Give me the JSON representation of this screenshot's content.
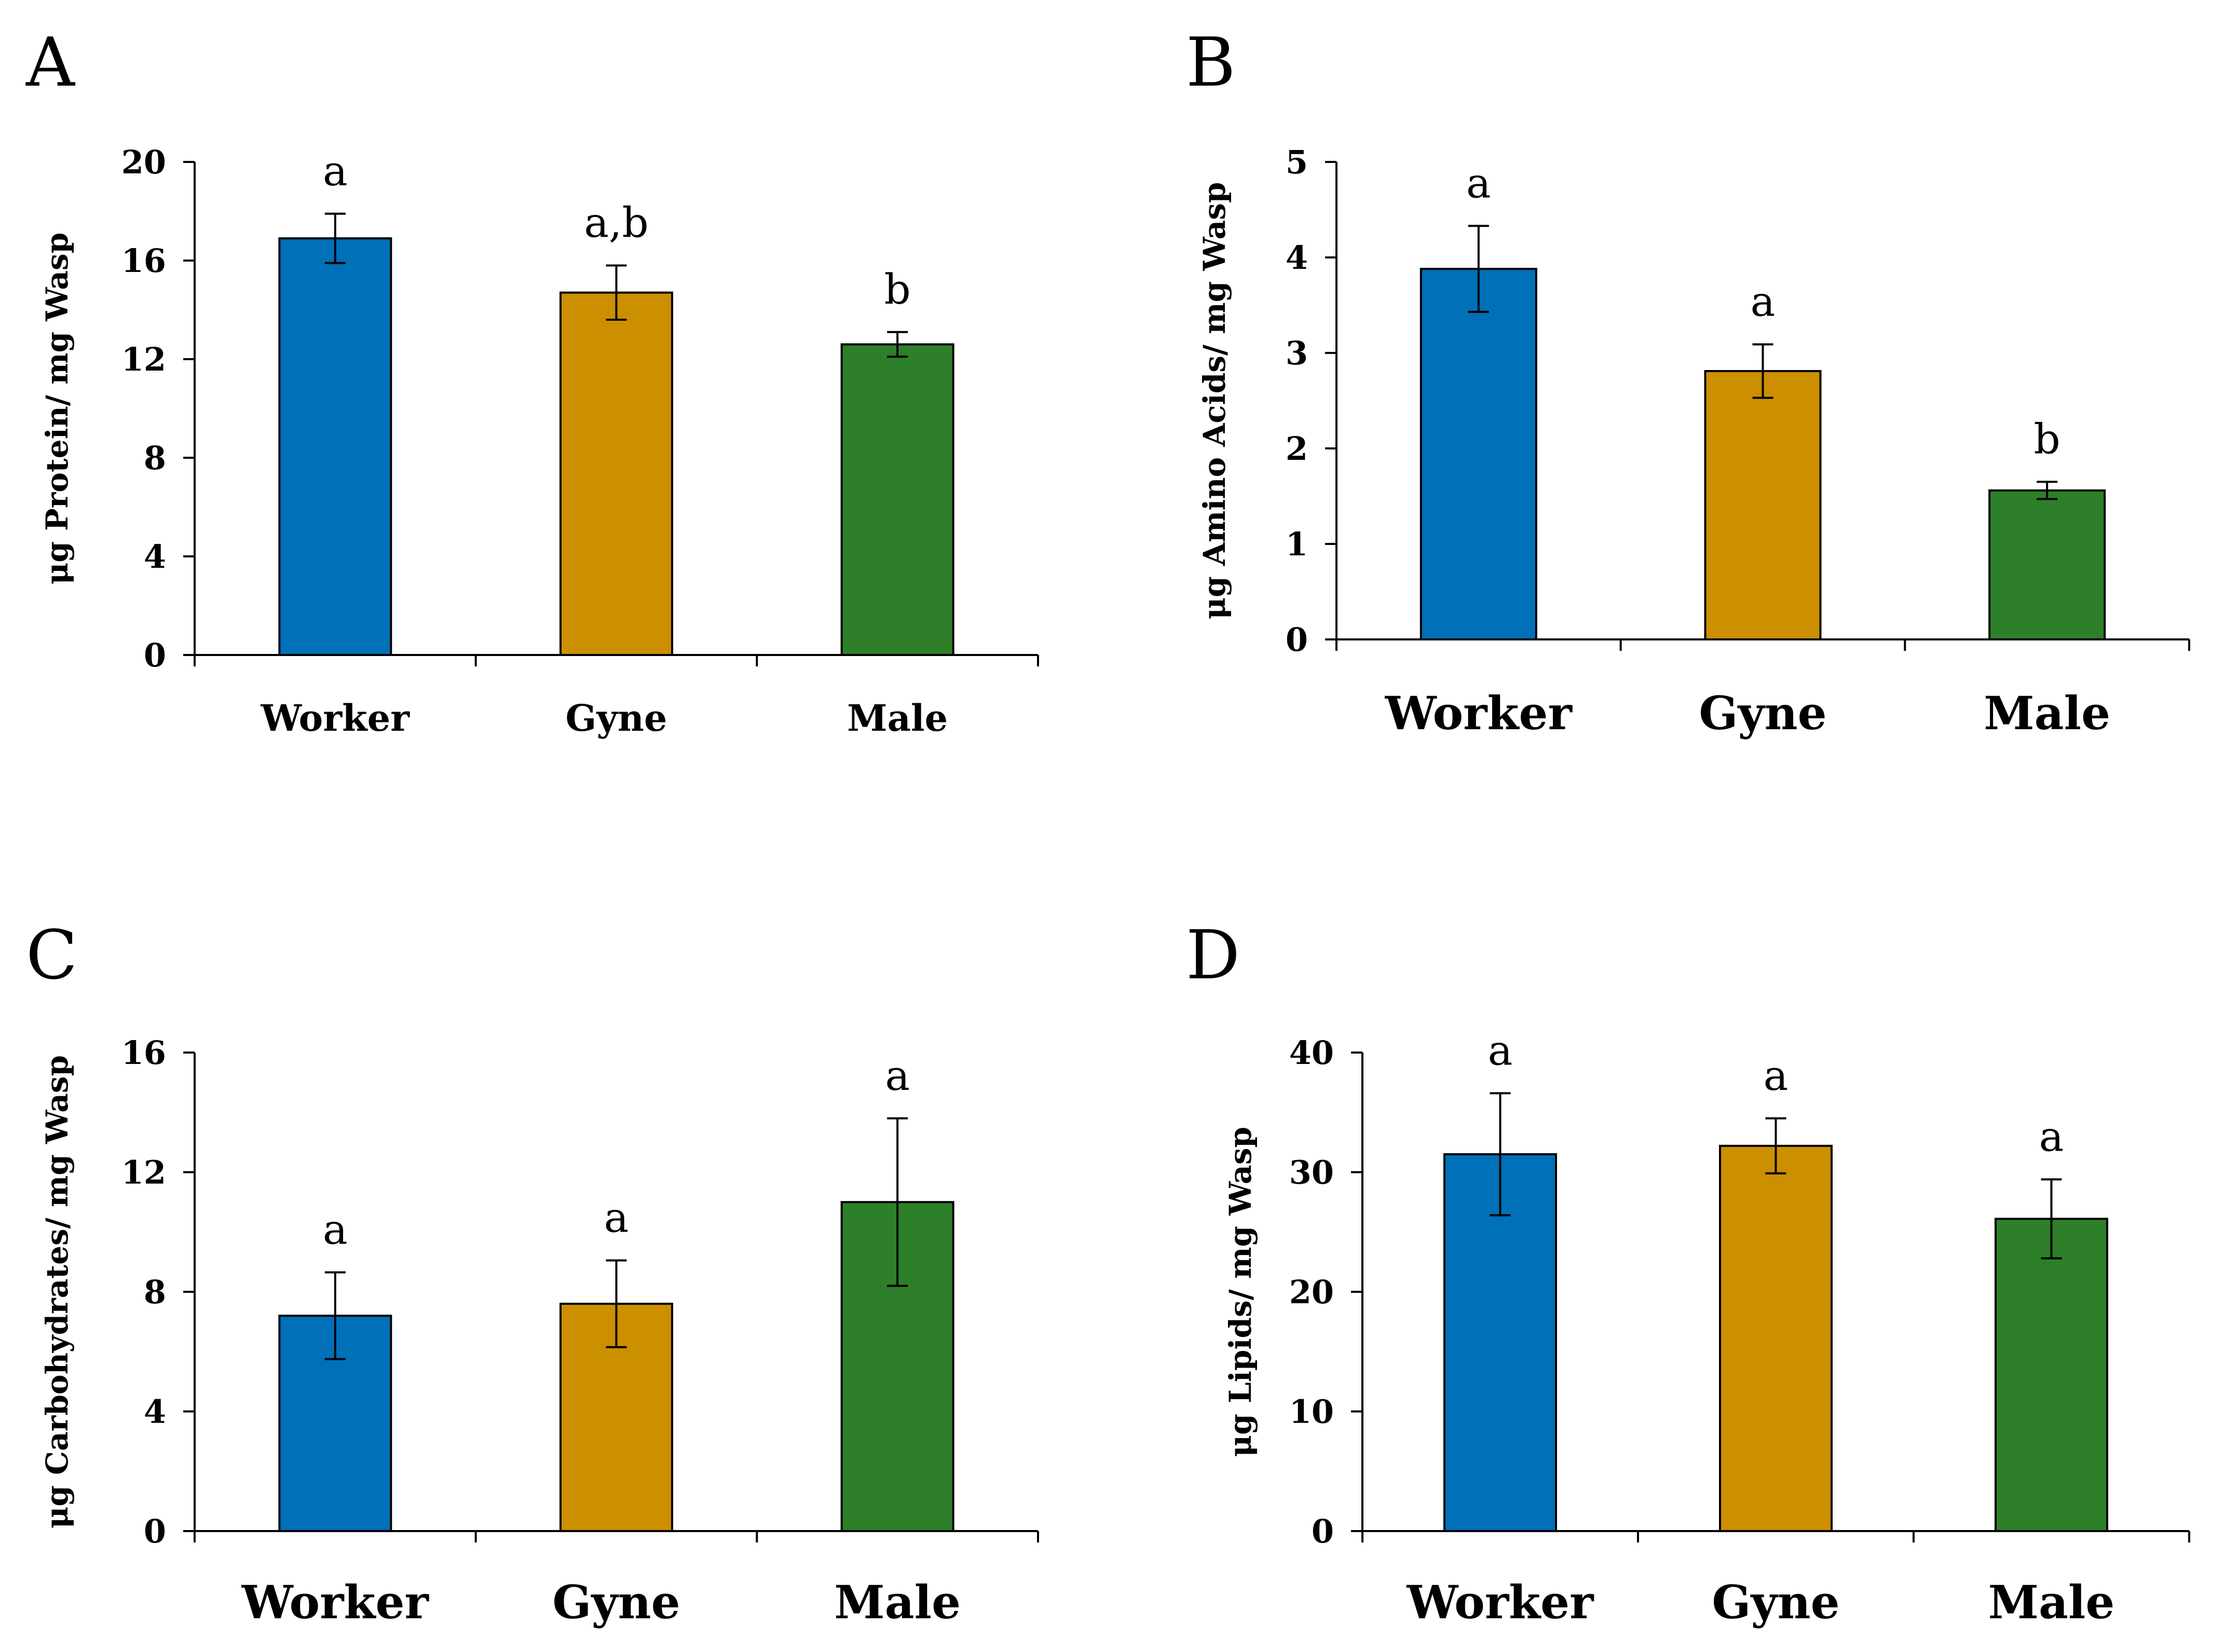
{
  "colors": {
    "Worker": "#0070b8",
    "Gyne": "#cc8f00",
    "Male": "#2e7f2a"
  },
  "chart_data": [
    {
      "panel": "A",
      "type": "bar",
      "categories": [
        "Worker",
        "Gyne",
        "Male"
      ],
      "values": [
        16.9,
        14.7,
        12.6
      ],
      "errors": [
        1.0,
        1.1,
        0.5
      ],
      "significance": [
        "a",
        "a,b",
        "b"
      ],
      "ylabel": "μg Protein/ mg Wasp",
      "ylim": [
        0,
        20
      ],
      "yticks": [
        0,
        4,
        8,
        12,
        16,
        20
      ]
    },
    {
      "panel": "B",
      "type": "bar",
      "categories": [
        "Worker",
        "Gyne",
        "Male"
      ],
      "values": [
        3.88,
        2.81,
        1.56
      ],
      "errors": [
        0.45,
        0.28,
        0.09
      ],
      "significance": [
        "a",
        "a",
        "b"
      ],
      "ylabel": "μg Amino Acids/ mg Wasp",
      "ylim": [
        0,
        5
      ],
      "yticks": [
        0,
        1,
        2,
        3,
        4,
        5
      ]
    },
    {
      "panel": "C",
      "type": "bar",
      "categories": [
        "Worker",
        "Gyne",
        "Male"
      ],
      "values": [
        7.2,
        7.6,
        11.0
      ],
      "errors": [
        1.45,
        1.45,
        2.8
      ],
      "significance": [
        "a",
        "a",
        "a"
      ],
      "ylabel": "μg Carbohydrates/ mg Wasp",
      "ylim": [
        0,
        16
      ],
      "yticks": [
        0,
        4,
        8,
        12,
        16
      ]
    },
    {
      "panel": "D",
      "type": "bar",
      "categories": [
        "Worker",
        "Gyne",
        "Male"
      ],
      "values": [
        31.5,
        32.2,
        26.1
      ],
      "errors": [
        5.1,
        2.3,
        3.3
      ],
      "significance": [
        "a",
        "a",
        "a"
      ],
      "ylabel": "μg Lipids/ mg Wasp",
      "ylim": [
        0,
        40
      ],
      "yticks": [
        0,
        10,
        20,
        30,
        40
      ]
    }
  ]
}
